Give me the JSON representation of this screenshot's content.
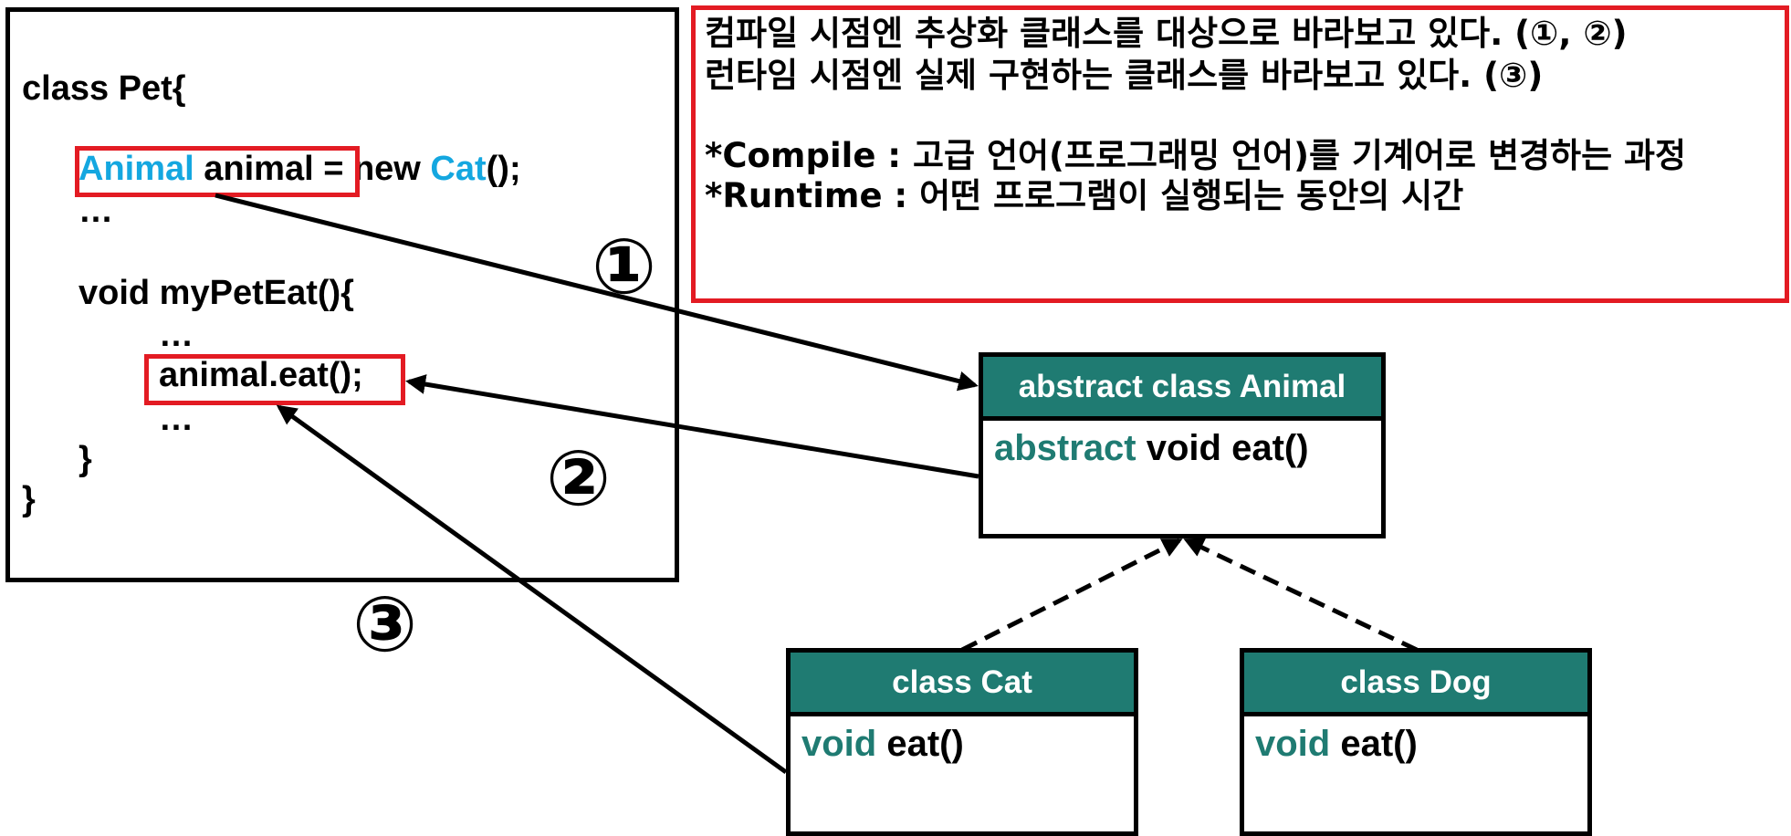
{
  "code": {
    "line1": "class Pet{",
    "line2_type": "Animal",
    "line2_mid": " animal ",
    "line2_rest": "= new ",
    "line2_cls": "Cat",
    "line2_end": "();",
    "line3": "…",
    "line4": "void myPetEat(){",
    "line5": "…",
    "line6": "animal.eat();",
    "line7": "…",
    "line8": "}",
    "line9": "}"
  },
  "notes": {
    "line1": "컴파일 시점엔 추상화 클래스를 대상으로 바라보고 있다. (①, ②)",
    "line2": "런타임 시점엔 실제 구현하는 클래스를 바라보고 있다. (③)",
    "line3": "*Compile : 고급 언어(프로그래밍 언어)를 기계어로 변경하는 과정",
    "line4": "*Runtime : 어떤 프로그램이 실행되는 동안의 시간"
  },
  "uml": {
    "animal": {
      "title": "abstract class Animal",
      "kw": "abstract",
      "method": " void eat()"
    },
    "cat": {
      "title": "class Cat",
      "kw": "void",
      "method": " eat()"
    },
    "dog": {
      "title": "class Dog",
      "kw": "void",
      "method": " eat()"
    }
  },
  "markers": {
    "one": "①",
    "two": "②",
    "three": "③"
  },
  "colors": {
    "accent_blue": "#14a7e0",
    "header_teal": "#1f7b72",
    "highlight_red": "#e31b23"
  }
}
